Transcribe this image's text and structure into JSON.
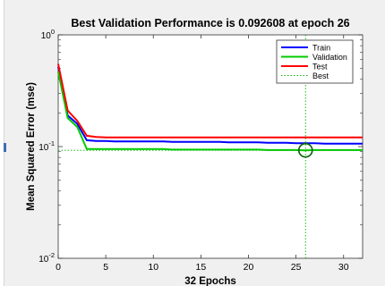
{
  "colors": {
    "background": "#f0f0f0",
    "axes_bg": "#ffffff",
    "train": "#0000ff",
    "validation": "#00cc00",
    "test": "#ff0000",
    "best": "#00b000",
    "best_marker": "#006400"
  },
  "chart_data": {
    "type": "line",
    "title": "Best Validation Performance is 0.092608 at epoch 26",
    "xlabel": "32 Epochs",
    "ylabel": "Mean Squared Error  (mse)",
    "xlim": [
      0,
      32
    ],
    "ylim": [
      0.01,
      1
    ],
    "yscale": "log",
    "xticks": [
      0,
      5,
      10,
      15,
      20,
      25,
      30
    ],
    "xtick_labels": [
      "0",
      "5",
      "10",
      "15",
      "20",
      "25",
      "30"
    ],
    "yticks": [
      0.01,
      0.1,
      1
    ],
    "ytick_labels": [
      {
        "base": "10",
        "exp": "-2"
      },
      {
        "base": "10",
        "exp": "-1"
      },
      {
        "base": "10",
        "exp": "0"
      }
    ],
    "grid": false,
    "legend_position": "top-right",
    "x": [
      0,
      1,
      2,
      3,
      4,
      5,
      6,
      7,
      8,
      9,
      10,
      11,
      12,
      13,
      14,
      15,
      16,
      17,
      18,
      19,
      20,
      21,
      22,
      23,
      24,
      25,
      26,
      27,
      28,
      29,
      30,
      31,
      32
    ],
    "series": [
      {
        "name": "Train",
        "color": "#0000ff",
        "values": [
          0.52,
          0.19,
          0.16,
          0.114,
          0.112,
          0.112,
          0.111,
          0.111,
          0.111,
          0.111,
          0.111,
          0.111,
          0.11,
          0.11,
          0.11,
          0.11,
          0.11,
          0.11,
          0.109,
          0.109,
          0.109,
          0.109,
          0.108,
          0.108,
          0.108,
          0.107,
          0.107,
          0.107,
          0.106,
          0.106,
          0.106,
          0.106,
          0.106
        ]
      },
      {
        "name": "Validation",
        "color": "#00cc00",
        "values": [
          0.47,
          0.18,
          0.15,
          0.095,
          0.095,
          0.095,
          0.095,
          0.095,
          0.095,
          0.095,
          0.095,
          0.095,
          0.094,
          0.094,
          0.094,
          0.094,
          0.094,
          0.094,
          0.094,
          0.094,
          0.094,
          0.094,
          0.093,
          0.093,
          0.093,
          0.093,
          0.0926,
          0.093,
          0.093,
          0.093,
          0.093,
          0.093,
          0.093
        ]
      },
      {
        "name": "Test",
        "color": "#ff0000",
        "values": [
          0.55,
          0.21,
          0.17,
          0.125,
          0.122,
          0.121,
          0.121,
          0.121,
          0.121,
          0.121,
          0.121,
          0.121,
          0.121,
          0.121,
          0.121,
          0.121,
          0.121,
          0.121,
          0.121,
          0.121,
          0.121,
          0.121,
          0.121,
          0.121,
          0.121,
          0.121,
          0.121,
          0.121,
          0.121,
          0.121,
          0.121,
          0.121,
          0.121
        ]
      }
    ],
    "best": {
      "name": "Best",
      "epoch": 26,
      "value": 0.092608
    }
  }
}
